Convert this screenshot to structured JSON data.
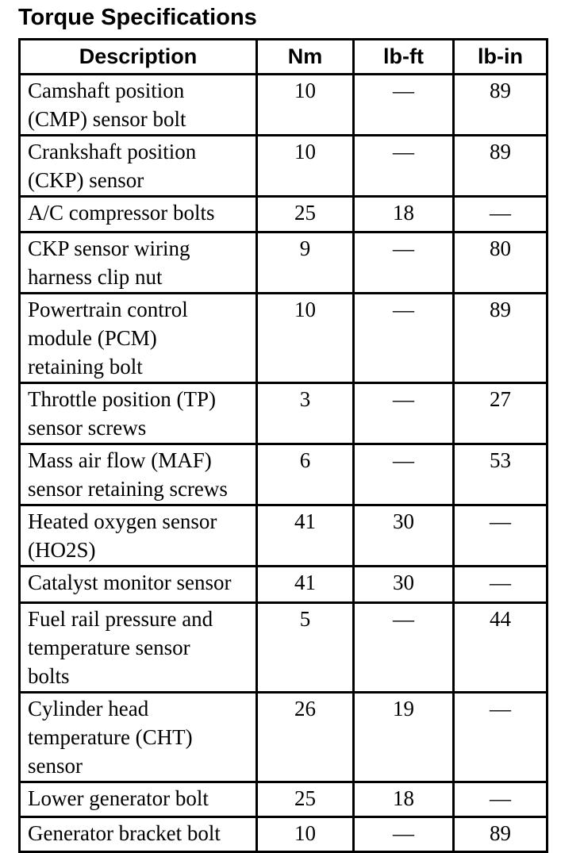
{
  "title": "Torque Specifications",
  "table": {
    "headers": [
      "Description",
      "Nm",
      "lb-ft",
      "lb-in"
    ],
    "rows": [
      {
        "desc": "Camshaft position\n(CMP) sensor bolt",
        "nm": "10",
        "lbft": "—",
        "lbin": "89"
      },
      {
        "desc": "Crankshaft position\n(CKP) sensor",
        "nm": "10",
        "lbft": "—",
        "lbin": "89"
      },
      {
        "desc": "A/C compressor bolts",
        "nm": "25",
        "lbft": "18",
        "lbin": "—"
      },
      {
        "desc": "CKP sensor wiring\nharness clip nut",
        "nm": "9",
        "lbft": "—",
        "lbin": "80"
      },
      {
        "desc": "Powertrain control\nmodule (PCM)\nretaining bolt",
        "nm": "10",
        "lbft": "—",
        "lbin": "89"
      },
      {
        "desc": "Throttle position (TP)\nsensor screws",
        "nm": "3",
        "lbft": "—",
        "lbin": "27"
      },
      {
        "desc": "Mass air flow (MAF)\nsensor retaining screws",
        "nm": "6",
        "lbft": "—",
        "lbin": "53"
      },
      {
        "desc": "Heated oxygen sensor\n(HO2S)",
        "nm": "41",
        "lbft": "30",
        "lbin": "—"
      },
      {
        "desc": "Catalyst monitor sensor",
        "nm": "41",
        "lbft": "30",
        "lbin": "—"
      },
      {
        "desc": "Fuel rail pressure and\ntemperature sensor\nbolts",
        "nm": "5",
        "lbft": "—",
        "lbin": "44"
      },
      {
        "desc": "Cylinder head\ntemperature (CHT)\nsensor",
        "nm": "26",
        "lbft": "19",
        "lbin": "—"
      },
      {
        "desc": "Lower generator bolt",
        "nm": "25",
        "lbft": "18",
        "lbin": "—"
      },
      {
        "desc": "Generator bracket bolt",
        "nm": "10",
        "lbft": "—",
        "lbin": "89"
      }
    ]
  }
}
